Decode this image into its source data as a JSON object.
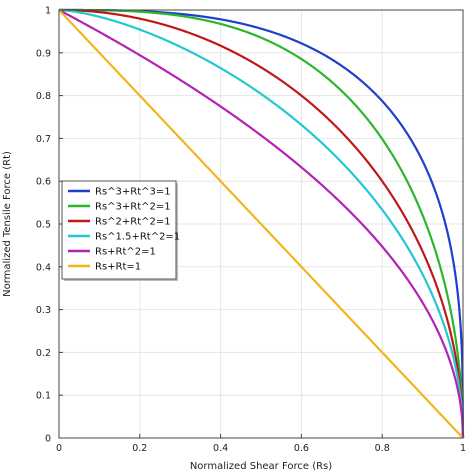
{
  "chart_data": {
    "type": "line",
    "xlabel": "Normalized Shear Force (Rs)",
    "ylabel": "Normalized Tensile Force (Rt)",
    "xlim": [
      0,
      1
    ],
    "ylim": [
      0,
      1
    ],
    "x_ticks": [
      "0",
      "0.2",
      "0.4",
      "0.6",
      "0.8",
      "1"
    ],
    "y_ticks": [
      "0",
      "0.1",
      "0.2",
      "0.3",
      "0.4",
      "0.5",
      "0.6",
      "0.7",
      "0.8",
      "0.9",
      "1"
    ],
    "grid": true,
    "legend_position": "middle-left",
    "series": [
      {
        "name": "Rs^3+Rt^3=1",
        "color": "#1f3fcc",
        "a": 3,
        "b": 3
      },
      {
        "name": "Rs^3+Rt^2=1",
        "color": "#2db52d",
        "a": 3,
        "b": 2
      },
      {
        "name": "Rs^2+Rt^2=1",
        "color": "#c01818",
        "a": 2,
        "b": 2
      },
      {
        "name": "Rs^1.5+Rt^2=1",
        "color": "#22c8d2",
        "a": 1.5,
        "b": 2
      },
      {
        "name": "Rs+Rt^2=1",
        "color": "#b422b4",
        "a": 1,
        "b": 2
      },
      {
        "name": "Rs+Rt=1",
        "color": "#f2b61c",
        "a": 1,
        "b": 1
      }
    ]
  }
}
